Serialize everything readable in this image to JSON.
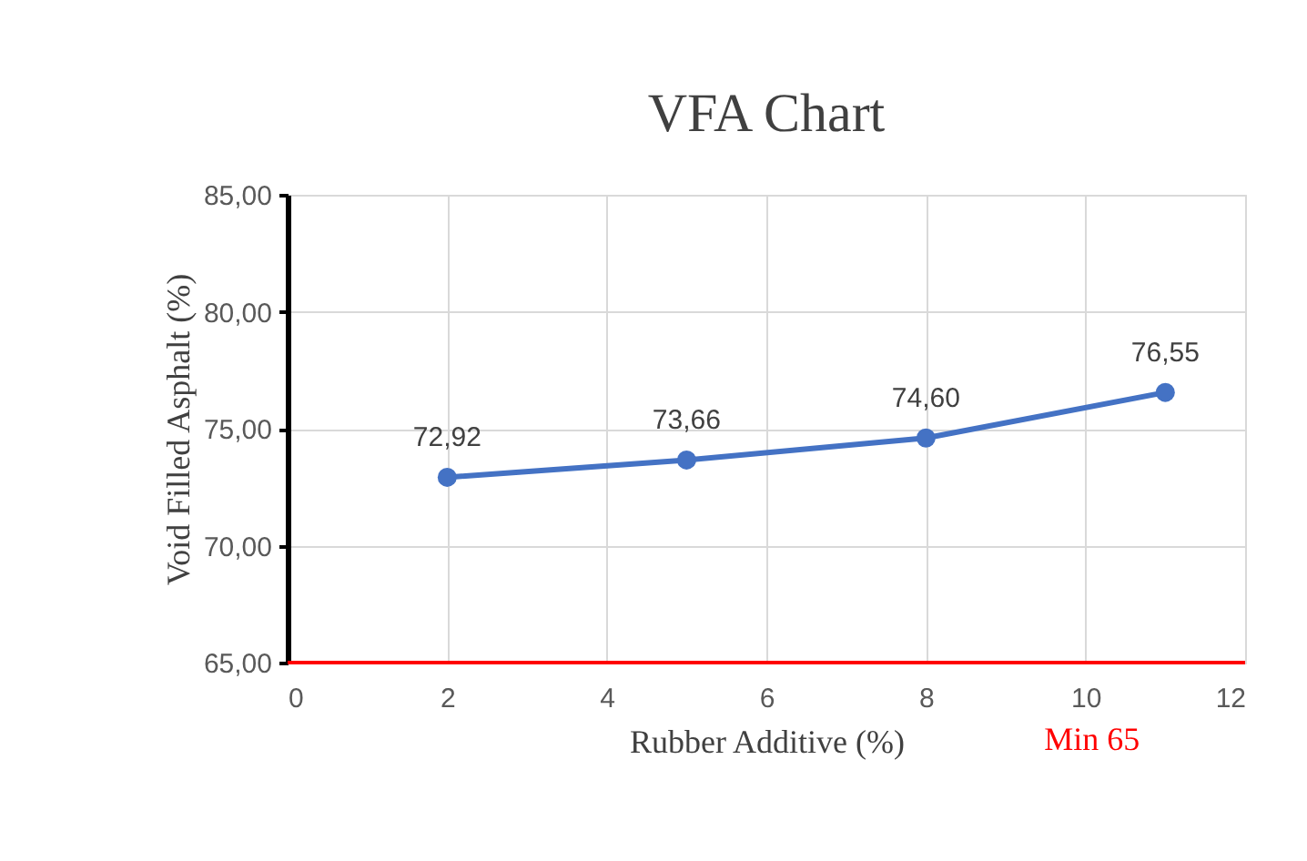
{
  "chart_data": {
    "type": "line",
    "title": "VFA Chart",
    "xlabel": "Rubber Additive (%)",
    "ylabel": "Void Filled Asphalt (%)",
    "x": [
      2,
      5,
      8,
      11
    ],
    "series": [
      {
        "color": "#4472c4",
        "values": [
          72.92,
          73.66,
          74.6,
          76.55
        ],
        "value_labels": [
          "72,92",
          "73,66",
          "74,60",
          "76,55"
        ]
      }
    ],
    "xlim": [
      0,
      12
    ],
    "xticks": [
      0,
      2,
      4,
      6,
      8,
      10,
      12
    ],
    "ylim": [
      65,
      85
    ],
    "yticks": [
      {
        "value": 65,
        "label": "65,00"
      },
      {
        "value": 70,
        "label": "70,00"
      },
      {
        "value": 75,
        "label": "75,00"
      },
      {
        "value": 80,
        "label": "80,00"
      },
      {
        "value": 85,
        "label": "85,00"
      }
    ],
    "ref_lines": [
      {
        "axis": "y",
        "value": 65,
        "label": "Min 65",
        "color": "#ff0000"
      }
    ],
    "grid": true,
    "marker": "circle",
    "line_style": "solid",
    "legend": false
  }
}
